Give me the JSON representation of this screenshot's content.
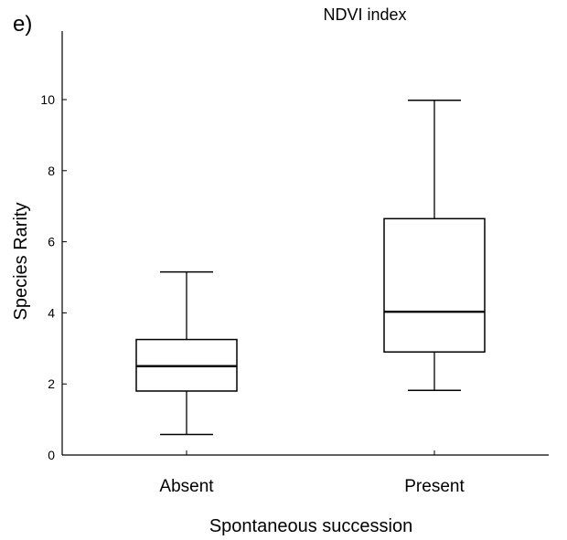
{
  "chart_data": {
    "type": "box",
    "panel_label": "e)",
    "title": "NDVI index",
    "xlabel": "Spontaneous succession",
    "ylabel": "Species Rarity",
    "ylim": [
      0,
      12
    ],
    "yticks": [
      "0",
      "2",
      "4",
      "6",
      "8",
      "10"
    ],
    "categories": [
      "Absent",
      "Present"
    ],
    "boxes": [
      {
        "category": "Absent",
        "whisker_low": 0.58,
        "q1": 1.8,
        "median": 2.5,
        "q3": 3.25,
        "whisker_high": 5.15
      },
      {
        "category": "Present",
        "whisker_low": 1.82,
        "q1": 2.9,
        "median": 4.03,
        "q3": 6.65,
        "whisker_high": 9.98
      }
    ],
    "grid": false,
    "line_color": "#000000"
  }
}
